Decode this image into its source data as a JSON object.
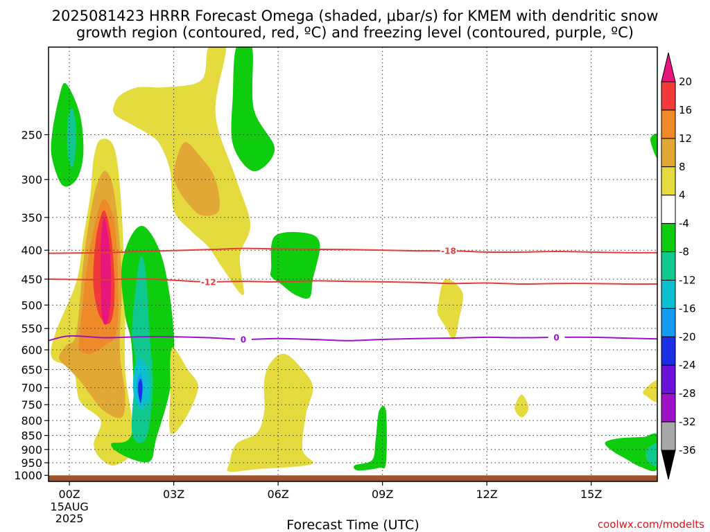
{
  "title_lines": [
    "2025081423 HRRR Forecast Omega (shaded, μbar/s) for KMEM with dendritic snow",
    "growth region (contoured, red, ºC) and freezing level (contoured, purple, ºC)"
  ],
  "credit": "coolwx.com/modelts",
  "chart_data": {
    "type": "heatmap",
    "xlabel": "Forecast Time (UTC)",
    "ylabel": "",
    "x_range_hours": [
      -0.6,
      16.9
    ],
    "y_range_hPa": [
      175,
      1025
    ],
    "y_scale": "log-pressure (inverted)",
    "grid": true,
    "x_ticks": [
      {
        "hour": 0,
        "label": "00Z",
        "sub": [
          "15AUG",
          "2025"
        ]
      },
      {
        "hour": 3,
        "label": "03Z"
      },
      {
        "hour": 6,
        "label": "06Z"
      },
      {
        "hour": 9,
        "label": "09Z"
      },
      {
        "hour": 12,
        "label": "12Z"
      },
      {
        "hour": 15,
        "label": "15Z"
      }
    ],
    "y_ticks": [
      250,
      300,
      350,
      400,
      450,
      500,
      550,
      600,
      650,
      700,
      750,
      800,
      850,
      900,
      950,
      1000
    ],
    "colorbar": {
      "position": "right",
      "levels": [
        20,
        16,
        12,
        8,
        4,
        -4,
        -8,
        -12,
        -16,
        -20,
        -24,
        -28,
        -32,
        -36
      ],
      "colors": [
        "#e8157a",
        "#f23a3a",
        "#ee8a2a",
        "#e2a836",
        "#e5da3e",
        "#ffffff",
        "#0ecc0e",
        "#10c990",
        "#0cc0d0",
        "#139cf2",
        "#1a2ee6",
        "#6a12d8",
        "#9f12c8",
        "#a8a8a8"
      ],
      "over_color": "#e8157a",
      "under_color": "#000000"
    },
    "ground": {
      "color": "#a0522d",
      "top_hPa": 1000
    },
    "contours": [
      {
        "name": "-18",
        "color": "#e53b3b",
        "label_hour": 10.9,
        "points": [
          [
            -0.6,
            405
          ],
          [
            1,
            404
          ],
          [
            2,
            402
          ],
          [
            4,
            399
          ],
          [
            5,
            397
          ],
          [
            6,
            398
          ],
          [
            8,
            399
          ],
          [
            10,
            401
          ],
          [
            11,
            401
          ],
          [
            12,
            403
          ],
          [
            13,
            403
          ],
          [
            14,
            402
          ],
          [
            15,
            403
          ],
          [
            16,
            404
          ],
          [
            16.9,
            404
          ]
        ]
      },
      {
        "name": "-12",
        "color": "#e53b3b",
        "label_hour": 4.0,
        "points": [
          [
            -0.6,
            450
          ],
          [
            1,
            451
          ],
          [
            2,
            449
          ],
          [
            3,
            452
          ],
          [
            4,
            455
          ],
          [
            5,
            454
          ],
          [
            6,
            455
          ],
          [
            7,
            453
          ],
          [
            8,
            454
          ],
          [
            9,
            455
          ],
          [
            10,
            456
          ],
          [
            11,
            458
          ],
          [
            12,
            457
          ],
          [
            13,
            459
          ],
          [
            14,
            458
          ],
          [
            15,
            458
          ],
          [
            16,
            459
          ],
          [
            16.9,
            459
          ]
        ]
      },
      {
        "name": "0",
        "color": "#9a12cc",
        "label_hour": 5.0,
        "points": [
          [
            -0.6,
            578
          ],
          [
            0,
            567
          ],
          [
            1,
            571
          ],
          [
            2,
            569
          ],
          [
            3,
            569
          ],
          [
            4,
            571
          ],
          [
            5,
            575
          ],
          [
            6,
            573
          ],
          [
            7,
            575
          ],
          [
            8,
            578
          ],
          [
            9,
            575
          ],
          [
            10,
            573
          ],
          [
            11,
            572
          ],
          [
            12,
            570
          ],
          [
            13,
            571
          ],
          [
            14,
            570
          ],
          [
            15,
            570
          ],
          [
            16,
            572
          ],
          [
            16.9,
            574
          ]
        ]
      },
      {
        "name": "0",
        "color": "#9a12cc",
        "label_hour": 14.0,
        "points": []
      }
    ],
    "omega_regions": [
      {
        "value": 6,
        "points": [
          [
            0.7,
            275
          ],
          [
            0.9,
            255
          ],
          [
            1.3,
            265
          ],
          [
            1.5,
            340
          ],
          [
            1.6,
            500
          ],
          [
            1.6,
            650
          ],
          [
            1.8,
            800
          ],
          [
            1.8,
            910
          ],
          [
            1.3,
            960
          ],
          [
            0.9,
            935
          ],
          [
            0.7,
            880
          ],
          [
            0.9,
            800
          ],
          [
            0.3,
            740
          ],
          [
            0.1,
            650
          ],
          [
            -0.5,
            620
          ],
          [
            -0.4,
            560
          ],
          [
            0.2,
            455
          ],
          [
            0.4,
            380
          ],
          [
            0.6,
            320
          ]
        ]
      },
      {
        "value": 10,
        "points": [
          [
            0.2,
            560
          ],
          [
            0.4,
            420
          ],
          [
            0.6,
            345
          ],
          [
            0.8,
            305
          ],
          [
            1.05,
            290
          ],
          [
            1.3,
            320
          ],
          [
            1.5,
            440
          ],
          [
            1.45,
            600
          ],
          [
            1.6,
            720
          ],
          [
            1.5,
            790
          ],
          [
            1.0,
            770
          ],
          [
            0.6,
            720
          ],
          [
            0.3,
            680
          ],
          [
            0.0,
            650
          ],
          [
            -0.3,
            620
          ],
          [
            -0.1,
            590
          ]
        ]
      },
      {
        "value": 14,
        "points": [
          [
            0.3,
            560
          ],
          [
            0.5,
            430
          ],
          [
            0.75,
            355
          ],
          [
            1.0,
            325
          ],
          [
            1.3,
            360
          ],
          [
            1.4,
            460
          ],
          [
            1.35,
            560
          ],
          [
            1.0,
            590
          ],
          [
            0.6,
            610
          ],
          [
            0.3,
            600
          ]
        ]
      },
      {
        "value": 18,
        "points": [
          [
            0.7,
            420
          ],
          [
            0.8,
            370
          ],
          [
            1.0,
            340
          ],
          [
            1.2,
            380
          ],
          [
            1.3,
            460
          ],
          [
            1.25,
            520
          ],
          [
            1.1,
            540
          ],
          [
            0.85,
            520
          ],
          [
            0.7,
            470
          ]
        ]
      },
      {
        "value": 22,
        "points": [
          [
            0.9,
            390
          ],
          [
            1.0,
            350
          ],
          [
            1.15,
            395
          ],
          [
            1.2,
            470
          ],
          [
            1.1,
            535
          ],
          [
            0.95,
            530
          ],
          [
            0.9,
            460
          ]
        ]
      },
      {
        "value": -6,
        "points": [
          [
            -0.5,
            250
          ],
          [
            -0.3,
            215
          ],
          [
            -0.1,
            203
          ],
          [
            0.3,
            230
          ],
          [
            0.4,
            270
          ],
          [
            0.2,
            300
          ],
          [
            -0.2,
            307
          ],
          [
            -0.5,
            275
          ]
        ]
      },
      {
        "value": -10,
        "points": [
          [
            -0.05,
            235
          ],
          [
            0.1,
            225
          ],
          [
            0.2,
            250
          ],
          [
            0.1,
            285
          ],
          [
            -0.05,
            270
          ]
        ]
      },
      {
        "value": -6,
        "points": [
          [
            1.8,
            600
          ],
          [
            1.6,
            520
          ],
          [
            1.5,
            430
          ],
          [
            1.8,
            375
          ],
          [
            2.2,
            365
          ],
          [
            2.7,
            420
          ],
          [
            3.0,
            560
          ],
          [
            2.9,
            700
          ],
          [
            2.5,
            860
          ],
          [
            2.3,
            945
          ],
          [
            1.6,
            925
          ],
          [
            1.2,
            880
          ],
          [
            1.8,
            840
          ]
        ]
      },
      {
        "value": -10,
        "points": [
          [
            1.9,
            470
          ],
          [
            2.05,
            410
          ],
          [
            2.2,
            440
          ],
          [
            2.3,
            560
          ],
          [
            2.4,
            700
          ],
          [
            2.2,
            860
          ],
          [
            1.8,
            840
          ],
          [
            1.9,
            640
          ],
          [
            1.8,
            560
          ]
        ]
      },
      {
        "value": -14,
        "points": [
          [
            1.85,
            660
          ],
          [
            2.0,
            620
          ],
          [
            2.25,
            650
          ],
          [
            2.3,
            730
          ],
          [
            2.05,
            765
          ],
          [
            1.85,
            720
          ]
        ]
      },
      {
        "value": -18,
        "points": [
          [
            1.95,
            680
          ],
          [
            2.05,
            660
          ],
          [
            2.12,
            700
          ],
          [
            2.05,
            730
          ],
          [
            1.95,
            710
          ]
        ]
      },
      {
        "value": -22,
        "points": [
          [
            1.98,
            690
          ],
          [
            2.05,
            675
          ],
          [
            2.1,
            700
          ],
          [
            2.05,
            745
          ],
          [
            1.98,
            715
          ]
        ]
      },
      {
        "value": 6,
        "points": [
          [
            1.3,
            220
          ],
          [
            1.5,
            212
          ],
          [
            2.0,
            206
          ],
          [
            2.8,
            206
          ],
          [
            3.8,
            200
          ],
          [
            4.0,
            175
          ],
          [
            4.5,
            175
          ],
          [
            4.2,
            230
          ],
          [
            4.8,
            300
          ],
          [
            5.2,
            360
          ],
          [
            4.9,
            410
          ],
          [
            5.0,
            480
          ],
          [
            4.4,
            430
          ],
          [
            4.0,
            395
          ],
          [
            3.5,
            370
          ],
          [
            3.0,
            340
          ],
          [
            2.9,
            290
          ],
          [
            2.6,
            260
          ],
          [
            2.3,
            250
          ],
          [
            1.8,
            240
          ],
          [
            1.3,
            230
          ]
        ]
      },
      {
        "value": 10,
        "points": [
          [
            3.0,
            290
          ],
          [
            3.3,
            258
          ],
          [
            3.8,
            275
          ],
          [
            4.2,
            300
          ],
          [
            4.3,
            340
          ],
          [
            3.8,
            347
          ],
          [
            3.4,
            330
          ],
          [
            3.1,
            310
          ]
        ]
      },
      {
        "value": -6,
        "points": [
          [
            4.7,
            212
          ],
          [
            4.8,
            175
          ],
          [
            5.25,
            175
          ],
          [
            5.3,
            225
          ],
          [
            5.9,
            265
          ],
          [
            5.3,
            290
          ],
          [
            4.7,
            260
          ]
        ]
      },
      {
        "value": 6,
        "points": [
          [
            2.9,
            620
          ],
          [
            3.0,
            595
          ],
          [
            3.4,
            650
          ],
          [
            3.7,
            700
          ],
          [
            3.3,
            800
          ],
          [
            2.9,
            840
          ],
          [
            2.9,
            700
          ]
        ]
      },
      {
        "value": 6,
        "points": [
          [
            4.6,
            950
          ],
          [
            4.8,
            880
          ],
          [
            5.4,
            840
          ],
          [
            5.6,
            770
          ],
          [
            5.6,
            680
          ],
          [
            5.8,
            630
          ],
          [
            6.2,
            610
          ],
          [
            6.7,
            650
          ],
          [
            7.0,
            700
          ],
          [
            6.8,
            780
          ],
          [
            6.7,
            900
          ],
          [
            7.0,
            950
          ],
          [
            6.5,
            965
          ],
          [
            5.4,
            975
          ],
          [
            4.6,
            985
          ]
        ]
      },
      {
        "value": -6,
        "points": [
          [
            5.8,
            430
          ],
          [
            5.9,
            378
          ],
          [
            6.8,
            373
          ],
          [
            7.2,
            390
          ],
          [
            7.0,
            450
          ],
          [
            6.9,
            485
          ],
          [
            6.5,
            480
          ],
          [
            6.1,
            460
          ],
          [
            5.8,
            445
          ]
        ]
      },
      {
        "value": 6,
        "points": [
          [
            10.6,
            500
          ],
          [
            10.8,
            450
          ],
          [
            11.3,
            475
          ],
          [
            11.2,
            530
          ],
          [
            11.05,
            575
          ],
          [
            10.8,
            545
          ],
          [
            10.6,
            520
          ]
        ]
      },
      {
        "value": 6,
        "points": [
          [
            12.8,
            760
          ],
          [
            13.0,
            720
          ],
          [
            13.2,
            760
          ],
          [
            13.0,
            790
          ]
        ]
      },
      {
        "value": -6,
        "points": [
          [
            8.2,
            960
          ],
          [
            8.7,
            940
          ],
          [
            8.8,
            870
          ],
          [
            8.9,
            770
          ],
          [
            9.1,
            770
          ],
          [
            9.1,
            950
          ],
          [
            8.9,
            970
          ],
          [
            8.3,
            980
          ]
        ]
      },
      {
        "value": 6,
        "points": [
          [
            16.5,
            710
          ],
          [
            16.9,
            680
          ],
          [
            16.9,
            740
          ],
          [
            16.6,
            725
          ]
        ]
      },
      {
        "value": -6,
        "points": [
          [
            16.9,
            250
          ],
          [
            16.7,
            255
          ],
          [
            16.9,
            275
          ]
        ]
      },
      {
        "value": -6,
        "points": [
          [
            15.4,
            875
          ],
          [
            15.8,
            860
          ],
          [
            16.5,
            855
          ],
          [
            16.9,
            850
          ],
          [
            16.9,
            975
          ],
          [
            16.4,
            965
          ],
          [
            16.0,
            935
          ],
          [
            15.6,
            905
          ]
        ]
      },
      {
        "value": -10,
        "points": [
          [
            16.6,
            900
          ],
          [
            16.9,
            880
          ],
          [
            16.9,
            960
          ],
          [
            16.6,
            940
          ]
        ]
      }
    ]
  }
}
